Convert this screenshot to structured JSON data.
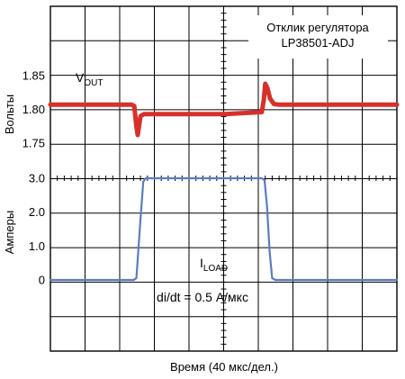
{
  "chart_data": {
    "type": "line",
    "title": "",
    "xlabel": "Время (40 мкс/дел.)",
    "legend_box": [
      "Отклик регулятора",
      "LP38501-ADJ"
    ],
    "annotation": "di/dt = 0.5 А/мкс",
    "grid": true,
    "x_units": "divisions",
    "x_divisions": 10,
    "panels": [
      {
        "ylabel": "Вольты",
        "ylim": [
          1.7,
          1.9
        ],
        "yticks": [
          "1.85",
          "1.80",
          "1.75"
        ],
        "series": [
          {
            "label_main": "V",
            "label_sub": "OUT",
            "color": "#d7302a",
            "x": [
              0,
              2.35,
              2.42,
              2.48,
              2.52,
              2.6,
              2.7,
              3.0,
              4.0,
              5.0,
              6.1,
              6.16,
              6.2,
              6.26,
              6.34,
              6.45,
              6.6,
              7.0,
              8.0,
              9.0,
              10.0
            ],
            "y": [
              1.807,
              1.807,
              1.805,
              1.775,
              1.762,
              1.79,
              1.793,
              1.793,
              1.793,
              1.793,
              1.796,
              1.815,
              1.838,
              1.832,
              1.816,
              1.808,
              1.807,
              1.807,
              1.807,
              1.807,
              1.807
            ]
          }
        ]
      },
      {
        "ylabel": "Амперы",
        "ylim": [
          -1.0,
          3.0
        ],
        "yticks": [
          "3.0",
          "2.0",
          "1.0",
          "0"
        ],
        "series": [
          {
            "label_main": "I",
            "label_sub": "LOAD",
            "color": "#5a7dc0",
            "x": [
              0,
              2.4,
              2.48,
              2.52,
              2.6,
              2.68,
              2.75,
              3.0,
              4.0,
              5.0,
              6.1,
              6.18,
              6.25,
              6.33,
              6.4,
              6.5,
              7.0,
              8.0,
              9.0,
              10.0
            ],
            "y": [
              0,
              0,
              0.05,
              0.6,
              1.8,
              2.9,
              3.0,
              3.0,
              3.0,
              3.0,
              3.0,
              2.95,
              2.2,
              0.8,
              0.05,
              0,
              0,
              0,
              0,
              0
            ]
          }
        ]
      }
    ]
  }
}
